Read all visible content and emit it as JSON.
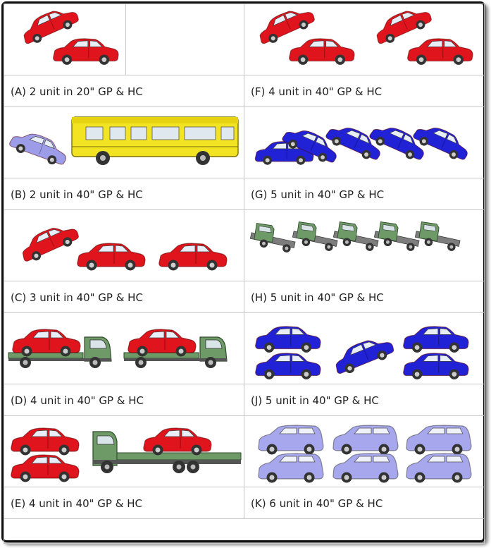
{
  "options": [
    {
      "label": "(A) 2 unit in 20\" GP & HC",
      "image": "two-red-sedans"
    },
    {
      "label": "(F) 4 unit in 40\" GP & HC",
      "image": "four-red-sedans"
    },
    {
      "label": "(B) 2 unit in 40\" GP & HC",
      "image": "purple-car-and-yellow-bus"
    },
    {
      "label": "(G) 5 unit in 40\" GP & HC",
      "image": "five-blue-sedans"
    },
    {
      "label": "(C) 3 unit in 40\" GP & HC",
      "image": "three-red-sedans"
    },
    {
      "label": "(H) 5 unit in 40\" GP & HC",
      "image": "five-green-trucks"
    },
    {
      "label": "(D) 4 unit in 40\" GP & HC",
      "image": "two-trucks-carrying-red-sedans"
    },
    {
      "label": "(J) 5 unit in 40\" GP & HC",
      "image": "five-blue-sedans-alt"
    },
    {
      "label": "(E) 4 unit in 40\" GP & HC",
      "image": "red-sedans-and-flatbed-truck"
    },
    {
      "label": "(K) 6 unit in 40\" GP & HC",
      "image": "six-lavender-hatchbacks"
    }
  ],
  "colors": {
    "red": "#e0141c",
    "blue": "#2121d6",
    "purple": "#9c9ce8",
    "lavender": "#a7a7ee",
    "yellow": "#f2e422",
    "green": "#6e9a68",
    "tire": "#333333",
    "border": "#c8c8c8"
  }
}
